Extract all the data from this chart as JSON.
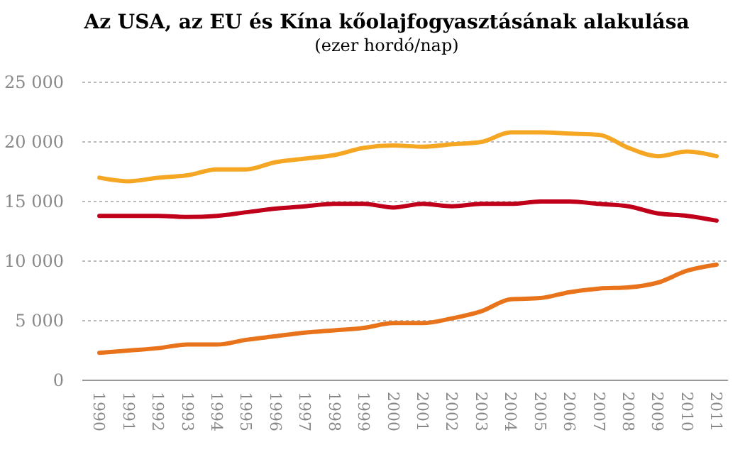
{
  "chart_data": {
    "type": "line",
    "title": "Az USA, az EU és Kína kőolajfogyasztásának alakulása",
    "subtitle": "(ezer hordó/nap)",
    "categories": [
      "1990",
      "1991",
      "1992",
      "1993",
      "1994",
      "1995",
      "1996",
      "1997",
      "1998",
      "1999",
      "2000",
      "2001",
      "2002",
      "2003",
      "2004",
      "2005",
      "2006",
      "2007",
      "2008",
      "2009",
      "2010",
      "2011"
    ],
    "series": [
      {
        "color": "#f5a623",
        "values": [
          17000,
          16700,
          17000,
          17200,
          17700,
          17700,
          18300,
          18600,
          18900,
          19500,
          19700,
          19600,
          19800,
          20000,
          20800,
          20800,
          20700,
          20600,
          19500,
          18800,
          19200,
          18800
        ]
      },
      {
        "color": "#c0001a",
        "values": [
          13800,
          13800,
          13800,
          13700,
          13800,
          14100,
          14400,
          14600,
          14800,
          14800,
          14500,
          14800,
          14600,
          14800,
          14800,
          15000,
          15000,
          14800,
          14600,
          14000,
          13800,
          13400
        ]
      },
      {
        "color": "#e8731a",
        "values": [
          2300,
          2500,
          2700,
          3000,
          3000,
          3400,
          3700,
          4000,
          4200,
          4400,
          4800,
          4800,
          5200,
          5800,
          6800,
          6900,
          7400,
          7700,
          7800,
          8200,
          9200,
          9700
        ]
      }
    ],
    "ylim": [
      0,
      25000
    ],
    "yticks": [
      {
        "value": 0,
        "label": "0"
      },
      {
        "value": 5000,
        "label": "5 000"
      },
      {
        "value": 10000,
        "label": "10 000"
      },
      {
        "value": 15000,
        "label": "15 000"
      },
      {
        "value": 20000,
        "label": "20 000"
      },
      {
        "value": 25000,
        "label": "25 000"
      }
    ],
    "grid": "y",
    "marker": "none",
    "line_style": "solid"
  }
}
